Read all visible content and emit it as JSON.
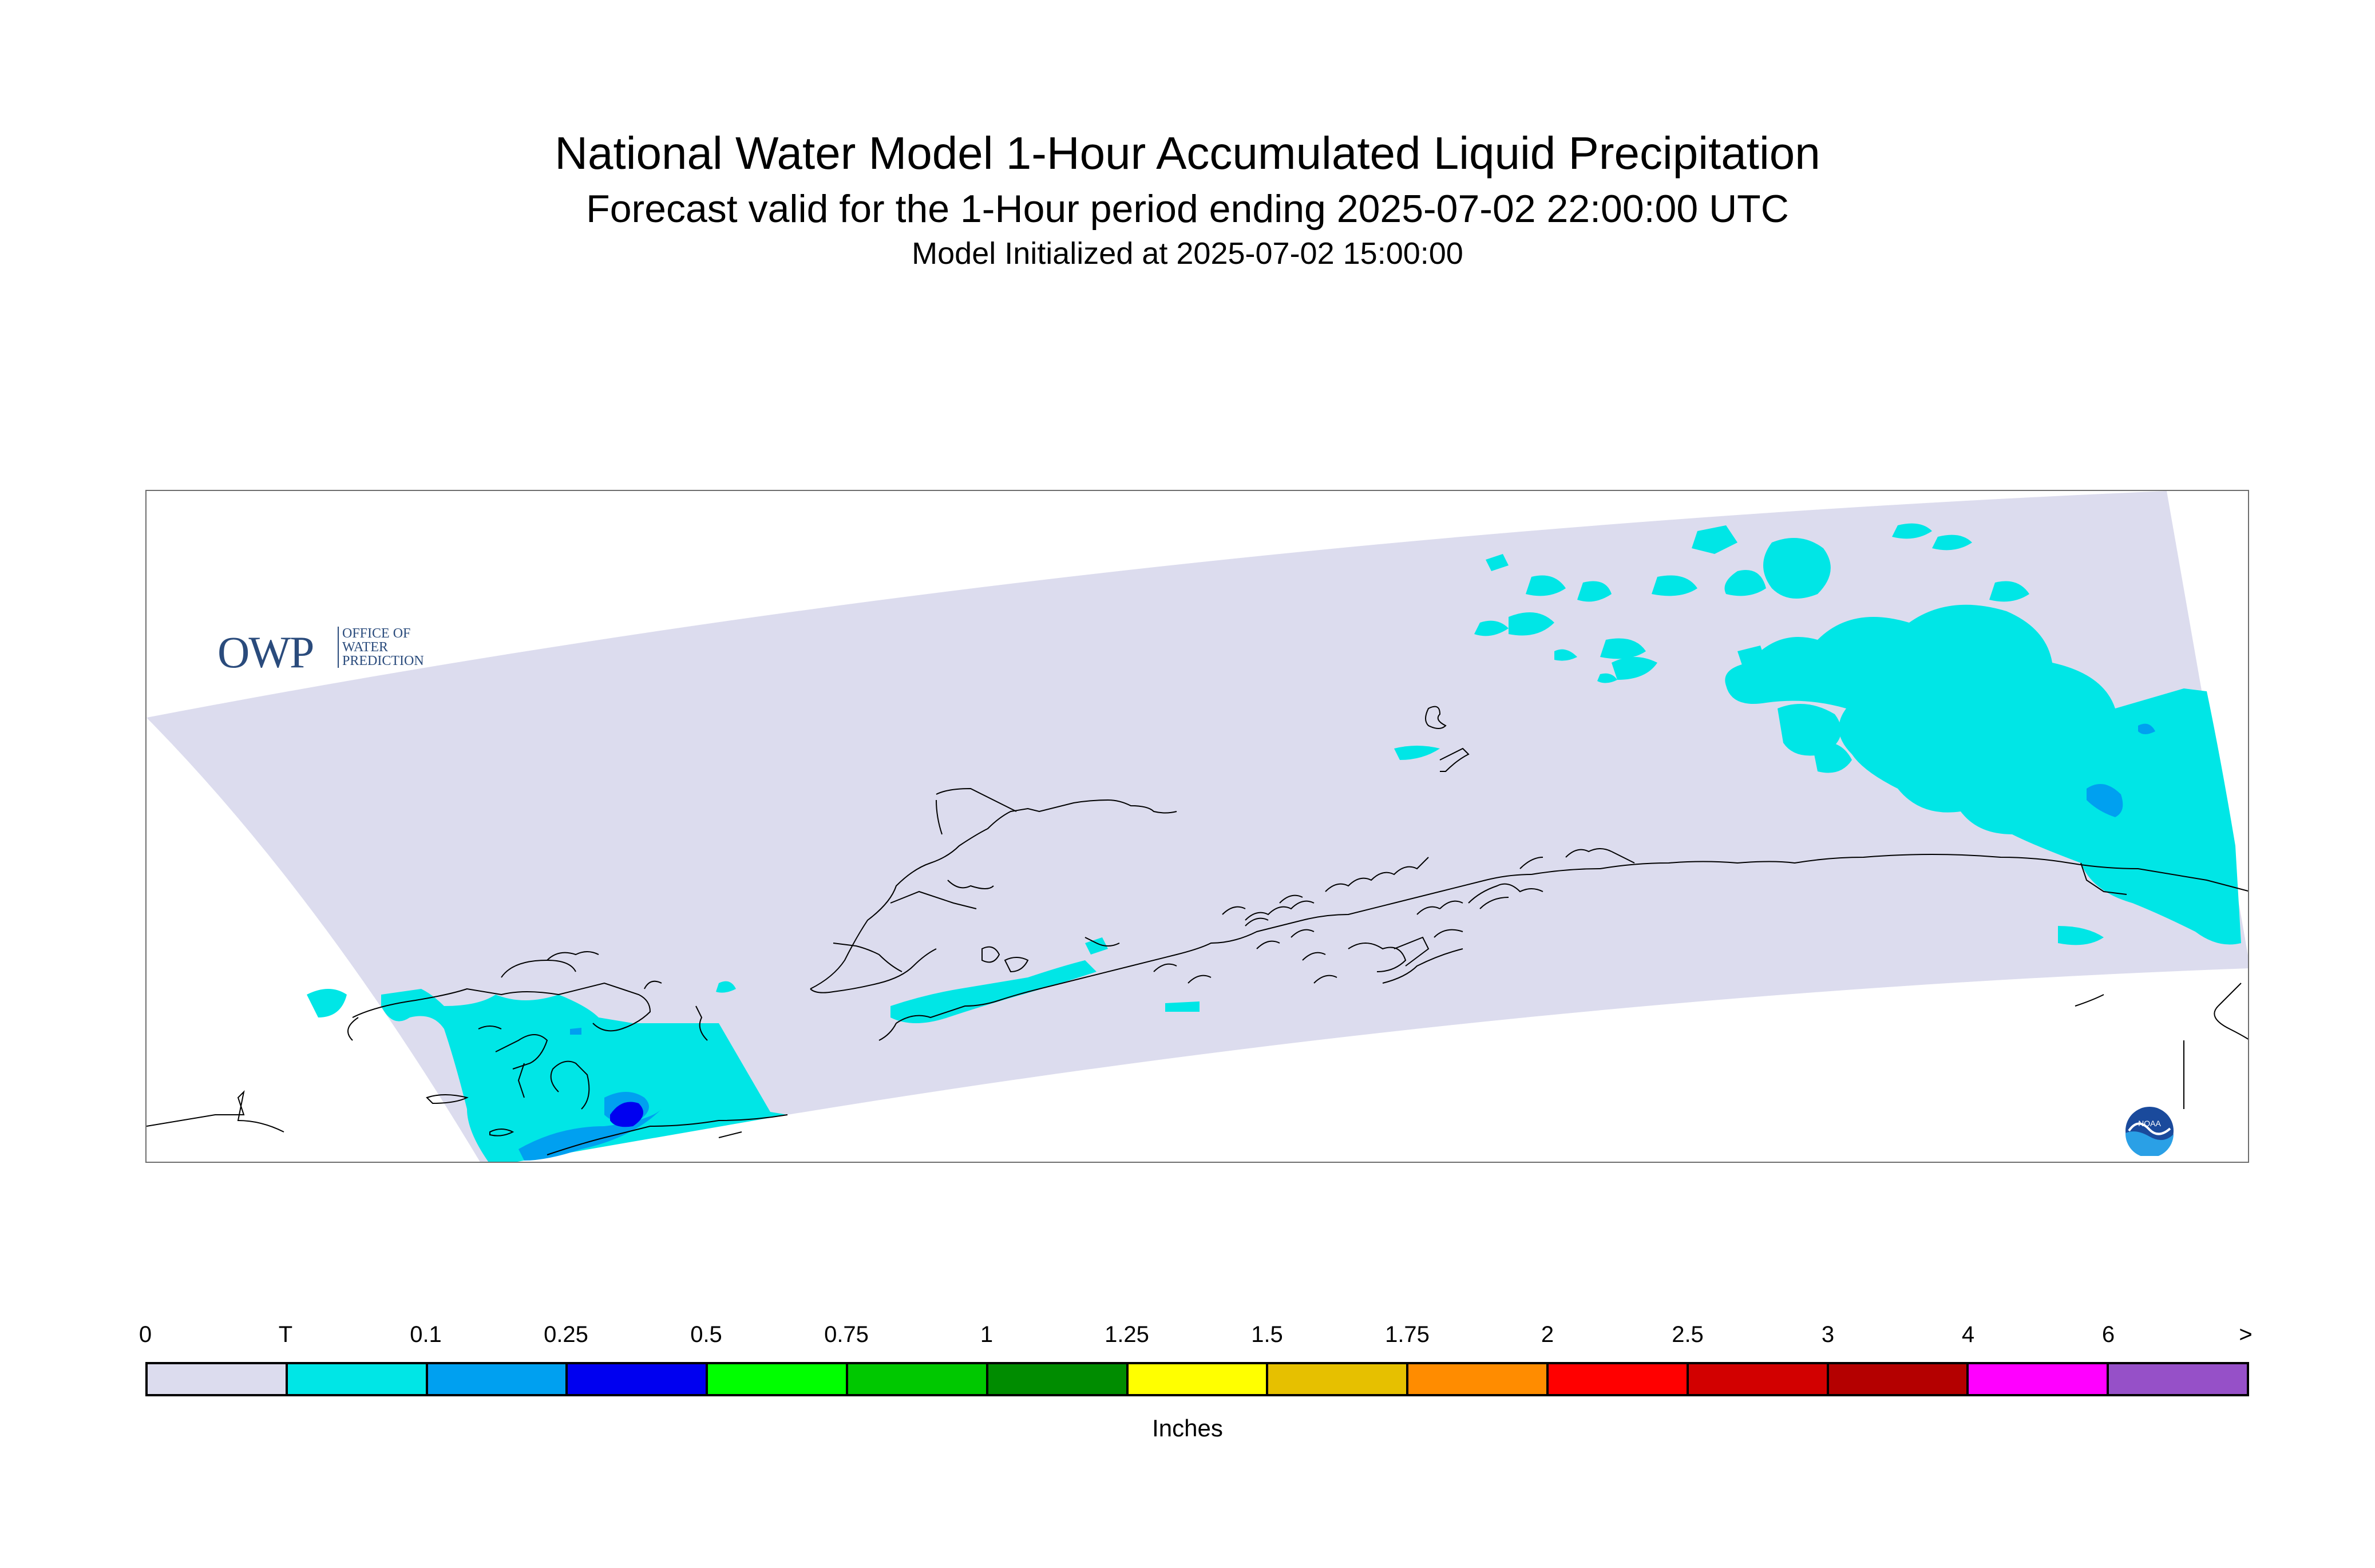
{
  "title": "National Water Model 1-Hour Accumulated Liquid Precipitation",
  "subtitle": "Forecast valid for the 1-Hour period ending 2025-07-02 22:00:00 UTC",
  "init_text": "Model Initialized at 2025-07-02 15:00:00",
  "logo_owp": {
    "mark": "OWP",
    "lines": [
      "OFFICE OF",
      "WATER",
      "PREDICTION"
    ]
  },
  "logo_noaa": {
    "text": "NOAA",
    "icon": "noaa-logo"
  },
  "legend": {
    "units": "Inches",
    "labels": [
      "0",
      "T",
      "0.1",
      "0.25",
      "0.5",
      "0.75",
      "1",
      "1.25",
      "1.5",
      "1.75",
      "2",
      "2.5",
      "3",
      "4",
      "6",
      ">"
    ],
    "colors": [
      "#dcdcee",
      "#00e6e6",
      "#00a0f0",
      "#0000f0",
      "#00ff00",
      "#00c800",
      "#008c00",
      "#ffff00",
      "#e6c000",
      "#ff8c00",
      "#ff0000",
      "#d20000",
      "#b40000",
      "#ff00ff",
      "#9650c8"
    ]
  },
  "colors": {
    "domain": "#dcdcee",
    "trace": "#00e6e6",
    "light": "#00a0f0",
    "moderate": "#0000f0",
    "coast": "#000000",
    "frame": "#6e6e6e"
  }
}
